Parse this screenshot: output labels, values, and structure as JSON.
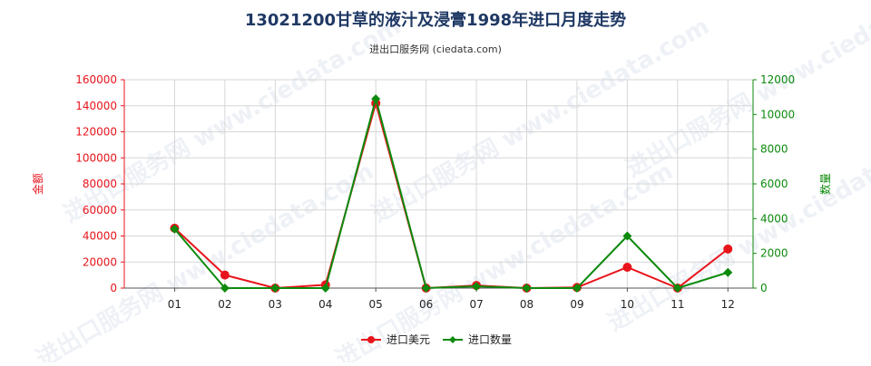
{
  "chart_data": {
    "type": "line",
    "title": "13021200甘草的液汁及浸膏1998年进口月度走势",
    "subtitle": "进出口服务网 (ciedata.com)",
    "watermark": "进出口服务网 www.ciedata.com",
    "categories": [
      "01",
      "02",
      "03",
      "04",
      "05",
      "06",
      "07",
      "08",
      "09",
      "10",
      "11",
      "12"
    ],
    "y_left": {
      "label": "金额",
      "ylim": [
        0,
        160000
      ],
      "ticks": [
        0,
        20000,
        40000,
        60000,
        80000,
        100000,
        120000,
        140000,
        160000
      ],
      "color": "#e8141b"
    },
    "y_right": {
      "label": "数量",
      "ylim": [
        0,
        12000
      ],
      "ticks": [
        0,
        2000,
        4000,
        6000,
        8000,
        10000,
        12000
      ],
      "color": "#0d8a0d"
    },
    "series": [
      {
        "name": "进口美元",
        "axis": "left",
        "color": "#e8141b",
        "marker": "circle",
        "values": [
          46000,
          10000,
          0,
          2500,
          142000,
          0,
          2000,
          0,
          500,
          16000,
          0,
          30000
        ]
      },
      {
        "name": "进口数量",
        "axis": "right",
        "color": "#0d8a0d",
        "marker": "diamond",
        "values": [
          3400,
          0,
          0,
          0,
          10900,
          0,
          100,
          0,
          0,
          3000,
          0,
          900
        ]
      }
    ],
    "grid": true,
    "legend_position": "bottom-center"
  }
}
